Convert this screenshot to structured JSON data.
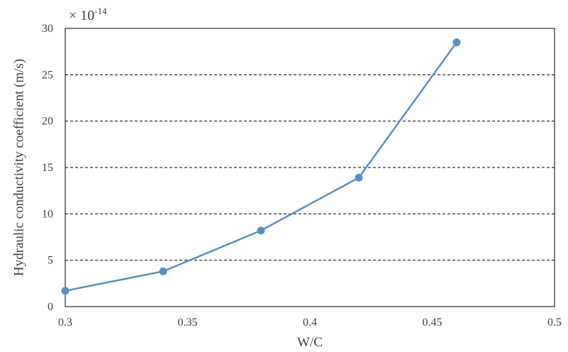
{
  "chart_data": {
    "type": "line",
    "title": "",
    "xlabel": "W/C",
    "ylabel": "Hydraulic conductivity coefficient (m/s)",
    "y_multiplier": {
      "base": "× 10",
      "exponent": "-14"
    },
    "xlim": [
      0.3,
      0.5
    ],
    "ylim": [
      0,
      30
    ],
    "x_ticks": [
      0.3,
      0.35,
      0.4,
      0.45,
      0.5
    ],
    "x_tick_labels": [
      "0.3",
      "0.35",
      "0.4",
      "0.45",
      "0.5"
    ],
    "y_ticks": [
      0,
      5,
      10,
      15,
      20,
      25,
      30
    ],
    "y_tick_labels": [
      "0",
      "5",
      "10",
      "15",
      "20",
      "25",
      "30"
    ],
    "grid": {
      "horizontal": true,
      "style": "dashed"
    },
    "legend": "none",
    "series": [
      {
        "x": [
          0.3,
          0.34,
          0.38,
          0.42,
          0.46
        ],
        "values": [
          1.7,
          3.8,
          8.2,
          13.9,
          28.5
        ],
        "color": "#5b8fc7",
        "marker": "circle"
      }
    ]
  }
}
